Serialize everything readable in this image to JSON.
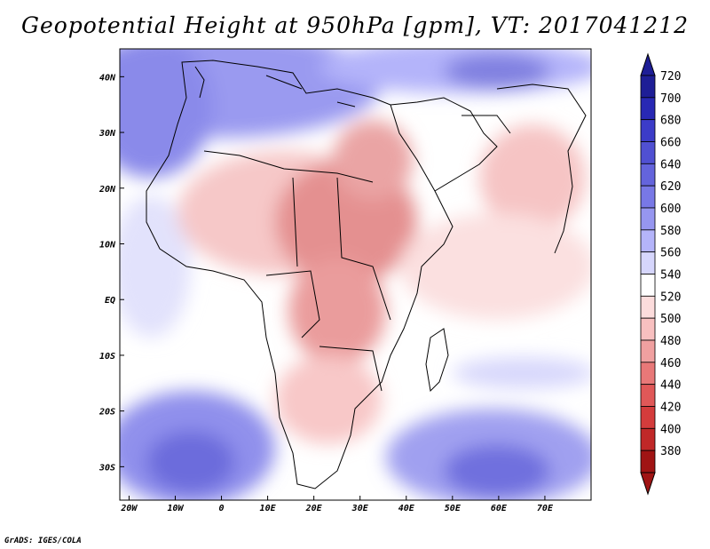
{
  "title": "Geopotential Height at 950hPa [gpm], VT: 2017041212",
  "footer": "GrADS: IGES/COLA",
  "map": {
    "lon_labels": [
      "20W",
      "10W",
      "0",
      "10E",
      "20E",
      "30E",
      "40E",
      "50E",
      "60E",
      "70E"
    ],
    "lon_values": [
      -20,
      -10,
      0,
      10,
      20,
      30,
      40,
      50,
      60,
      70
    ],
    "lat_labels": [
      "40N",
      "30N",
      "20N",
      "10N",
      "EQ",
      "10S",
      "20S",
      "30S"
    ],
    "lat_values": [
      40,
      30,
      20,
      10,
      0,
      -10,
      -20,
      -30
    ],
    "lon_range": [
      -22,
      80
    ],
    "lat_range": [
      -36,
      45
    ]
  },
  "colorbar": {
    "levels": [
      "720",
      "700",
      "680",
      "660",
      "640",
      "620",
      "600",
      "580",
      "560",
      "540",
      "520",
      "500",
      "480",
      "460",
      "440",
      "420",
      "400",
      "380"
    ],
    "colors": [
      "#1e1e96",
      "#2828b4",
      "#3c3cc8",
      "#5050d2",
      "#6464dc",
      "#7878e6",
      "#9696f0",
      "#b4b4fa",
      "#d6d6fc",
      "#ffffff",
      "#fcdcdc",
      "#f8c0c0",
      "#f0a0a0",
      "#e87878",
      "#e05858",
      "#d43c3c",
      "#c02828",
      "#a01414"
    ]
  }
}
